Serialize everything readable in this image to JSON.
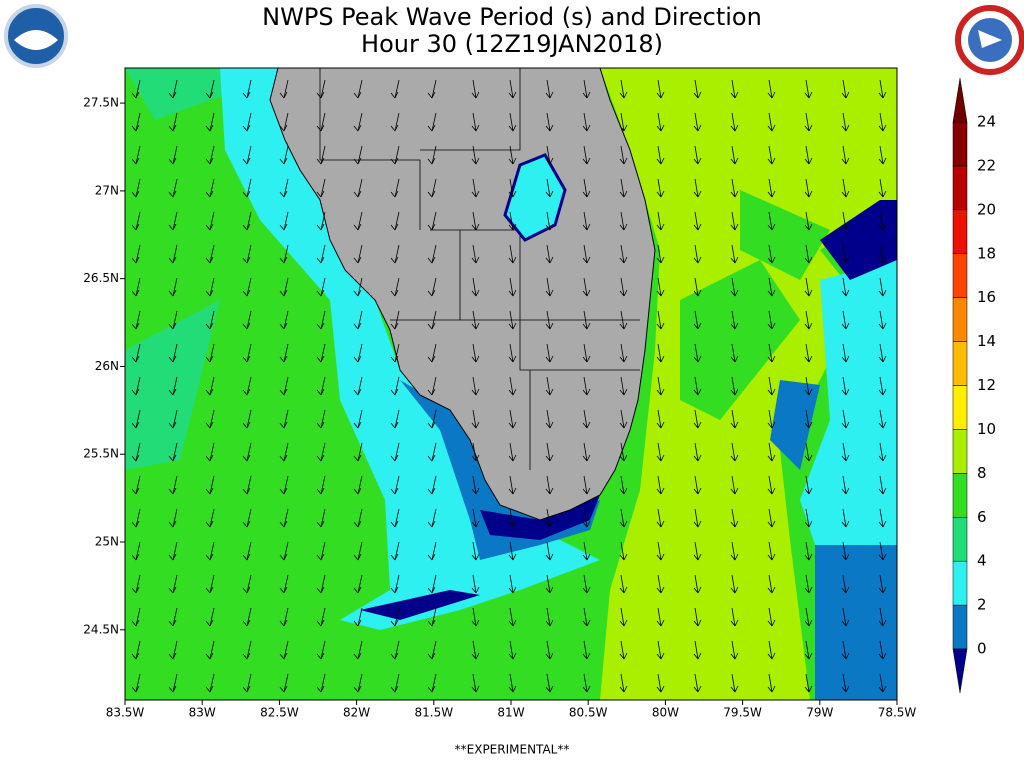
{
  "title": [
    "NWPS Peak Wave Period (s) and Direction",
    "Hour 30 (12Z19JAN2018)"
  ],
  "map": {
    "xlim": [
      -83.5,
      -78.5
    ],
    "ylim": [
      24.1,
      27.7
    ],
    "xticks": [
      {
        "value": -83.5,
        "label": "83.5W"
      },
      {
        "value": -83,
        "label": "83W"
      },
      {
        "value": -82.5,
        "label": "82.5W"
      },
      {
        "value": -82,
        "label": "82W"
      },
      {
        "value": -81.5,
        "label": "81.5W"
      },
      {
        "value": -81,
        "label": "81W"
      },
      {
        "value": -80.5,
        "label": "80.5W"
      },
      {
        "value": -80,
        "label": "80W"
      },
      {
        "value": -79.5,
        "label": "79.5W"
      },
      {
        "value": -79,
        "label": "79W"
      },
      {
        "value": -78.5,
        "label": "78.5W"
      }
    ],
    "yticks": [
      {
        "value": 24.5,
        "label": "24.5N"
      },
      {
        "value": 25,
        "label": "25N"
      },
      {
        "value": 25.5,
        "label": "25.5N"
      },
      {
        "value": 26,
        "label": "26N"
      },
      {
        "value": 26.5,
        "label": "26.5N"
      },
      {
        "value": 27,
        "label": "27N"
      },
      {
        "value": 27.5,
        "label": "27.5N"
      }
    ]
  },
  "colorbar": {
    "ticks": [
      0,
      2,
      4,
      6,
      8,
      10,
      12,
      14,
      16,
      18,
      20,
      22,
      24
    ],
    "colors": [
      "#0a78c4",
      "#2ef0f0",
      "#22dd77",
      "#33dd22",
      "#aaee00",
      "#ffee00",
      "#ffbb00",
      "#ff8800",
      "#ff4400",
      "#ee1100",
      "#bb0000",
      "#880000"
    ],
    "under_color": "#00008a",
    "over_color": "#700000"
  },
  "footer": "**EXPERIMENTAL**"
}
